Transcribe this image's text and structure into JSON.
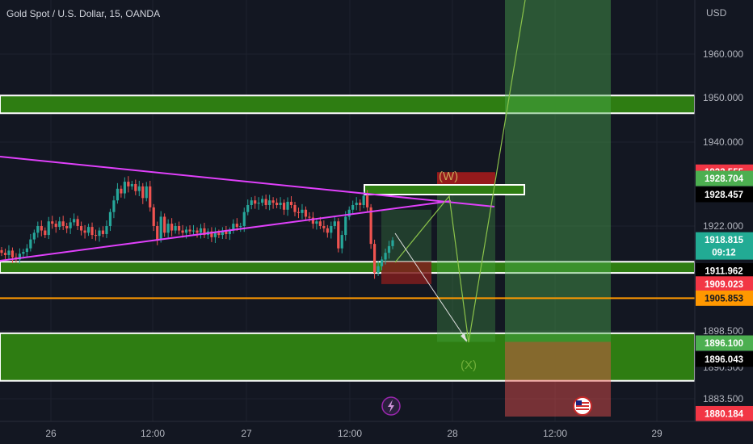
{
  "header": {
    "title": "Gold Spot / U.S. Dollar, 15, OANDA"
  },
  "axis": {
    "currency": "USD",
    "y_ticks": [
      "1960.000",
      "1950.000",
      "1940.000",
      "1922.000",
      "1898.500",
      "1890.500",
      "1883.500"
    ],
    "x_ticks": [
      "26",
      "12:00",
      "27",
      "12:00",
      "28",
      "12:00",
      "29"
    ]
  },
  "price_tags": [
    {
      "label": "1933.555",
      "bg": "#f23645",
      "fg": "#ffffff"
    },
    {
      "label": "1928.704",
      "bg": "#4caf50",
      "fg": "#ffffff"
    },
    {
      "label": "1928.457",
      "bg": "#000000",
      "fg": "#ffffff"
    },
    {
      "label": "1918.815",
      "sub": "09:12",
      "bg": "#22ab94",
      "fg": "#ffffff"
    },
    {
      "label": "1911.962",
      "bg": "#000000",
      "fg": "#ffffff"
    },
    {
      "label": "1909.023",
      "bg": "#f23645",
      "fg": "#ffffff"
    },
    {
      "label": "1905.853",
      "bg": "#ff9800",
      "fg": "#131722"
    },
    {
      "label": "1896.100",
      "bg": "#4caf50",
      "fg": "#ffffff"
    },
    {
      "label": "1896.043",
      "bg": "#000000",
      "fg": "#ffffff"
    },
    {
      "label": "1880.184",
      "bg": "#f23645",
      "fg": "#ffffff"
    }
  ],
  "annotations": {
    "wave_w": "(W)",
    "wave_x": "(X)"
  },
  "icons": {
    "lightning": "lightning-icon",
    "flag": "us-flag-icon"
  },
  "colors": {
    "background": "#131722",
    "up_candle": "#26a69a",
    "down_candle": "#ef5350",
    "triangle": "#e040fb",
    "zone_green": "#2e7d12",
    "zone_border": "#ffffff",
    "orange_line": "#ff9800",
    "projection": "#8bc34a"
  },
  "chart_data": {
    "type": "candlestick",
    "title": "Gold Spot / U.S. Dollar, 15, OANDA",
    "symbol": "XAUUSD",
    "timeframe": "15",
    "ylim": [
      1878,
      1968
    ],
    "x_labels": [
      "26",
      "12:00",
      "27",
      "12:00",
      "28",
      "12:00",
      "29"
    ],
    "close_series": [
      1916,
      1915.5,
      1916.5,
      1915,
      1914.5,
      1915.8,
      1916.2,
      1917,
      1919,
      1920.5,
      1922,
      1921,
      1920,
      1923,
      1922.5,
      1921.8,
      1923,
      1922,
      1921.5,
      1922.8,
      1923.5,
      1922,
      1921,
      1920.5,
      1921.8,
      1920,
      1919.8,
      1921,
      1920.2,
      1922,
      1925,
      1927.5,
      1930,
      1929,
      1931.5,
      1930.5,
      1931,
      1929.5,
      1930.5,
      1928,
      1930.5,
      1926,
      1922,
      1919,
      1924,
      1920.5,
      1922.5,
      1921,
      1922,
      1921,
      1920.5,
      1921.2,
      1920.8,
      1921,
      1920.5,
      1921.5,
      1920,
      1920.8,
      1919.5,
      1920.5,
      1920,
      1920.8,
      1920.2,
      1921,
      1922.5,
      1921.8,
      1922,
      1925,
      1926.5,
      1927.5,
      1926.8,
      1927,
      1927.8,
      1926.5,
      1927.5,
      1927,
      1926.5,
      1927,
      1925.5,
      1927.2,
      1926.5,
      1925,
      1924.8,
      1925.5,
      1924,
      1923.8,
      1922.5,
      1923,
      1922,
      1921.5,
      1920.5,
      1922,
      1923,
      1917,
      1920,
      1924,
      1925.5,
      1926.5,
      1927,
      1926.5,
      1928.5,
      1926,
      1918,
      1911.5,
      1913,
      1914.5,
      1916,
      1917.5,
      1918.815
    ],
    "horizontal_zones": [
      {
        "from": 1946.5,
        "to": 1950.5
      },
      {
        "from": 1911.5,
        "to": 1914
      },
      {
        "from": 1887.5,
        "to": 1898
      }
    ],
    "horizontal_lines": [
      {
        "price": 1905.853,
        "label": "1905.853"
      }
    ],
    "price_labels": [
      1933.555,
      1928.704,
      1928.457,
      1918.815,
      1911.962,
      1909.023,
      1905.853,
      1896.1,
      1896.043,
      1880.184
    ],
    "wave_labels": [
      "(W)",
      "(X)"
    ]
  }
}
